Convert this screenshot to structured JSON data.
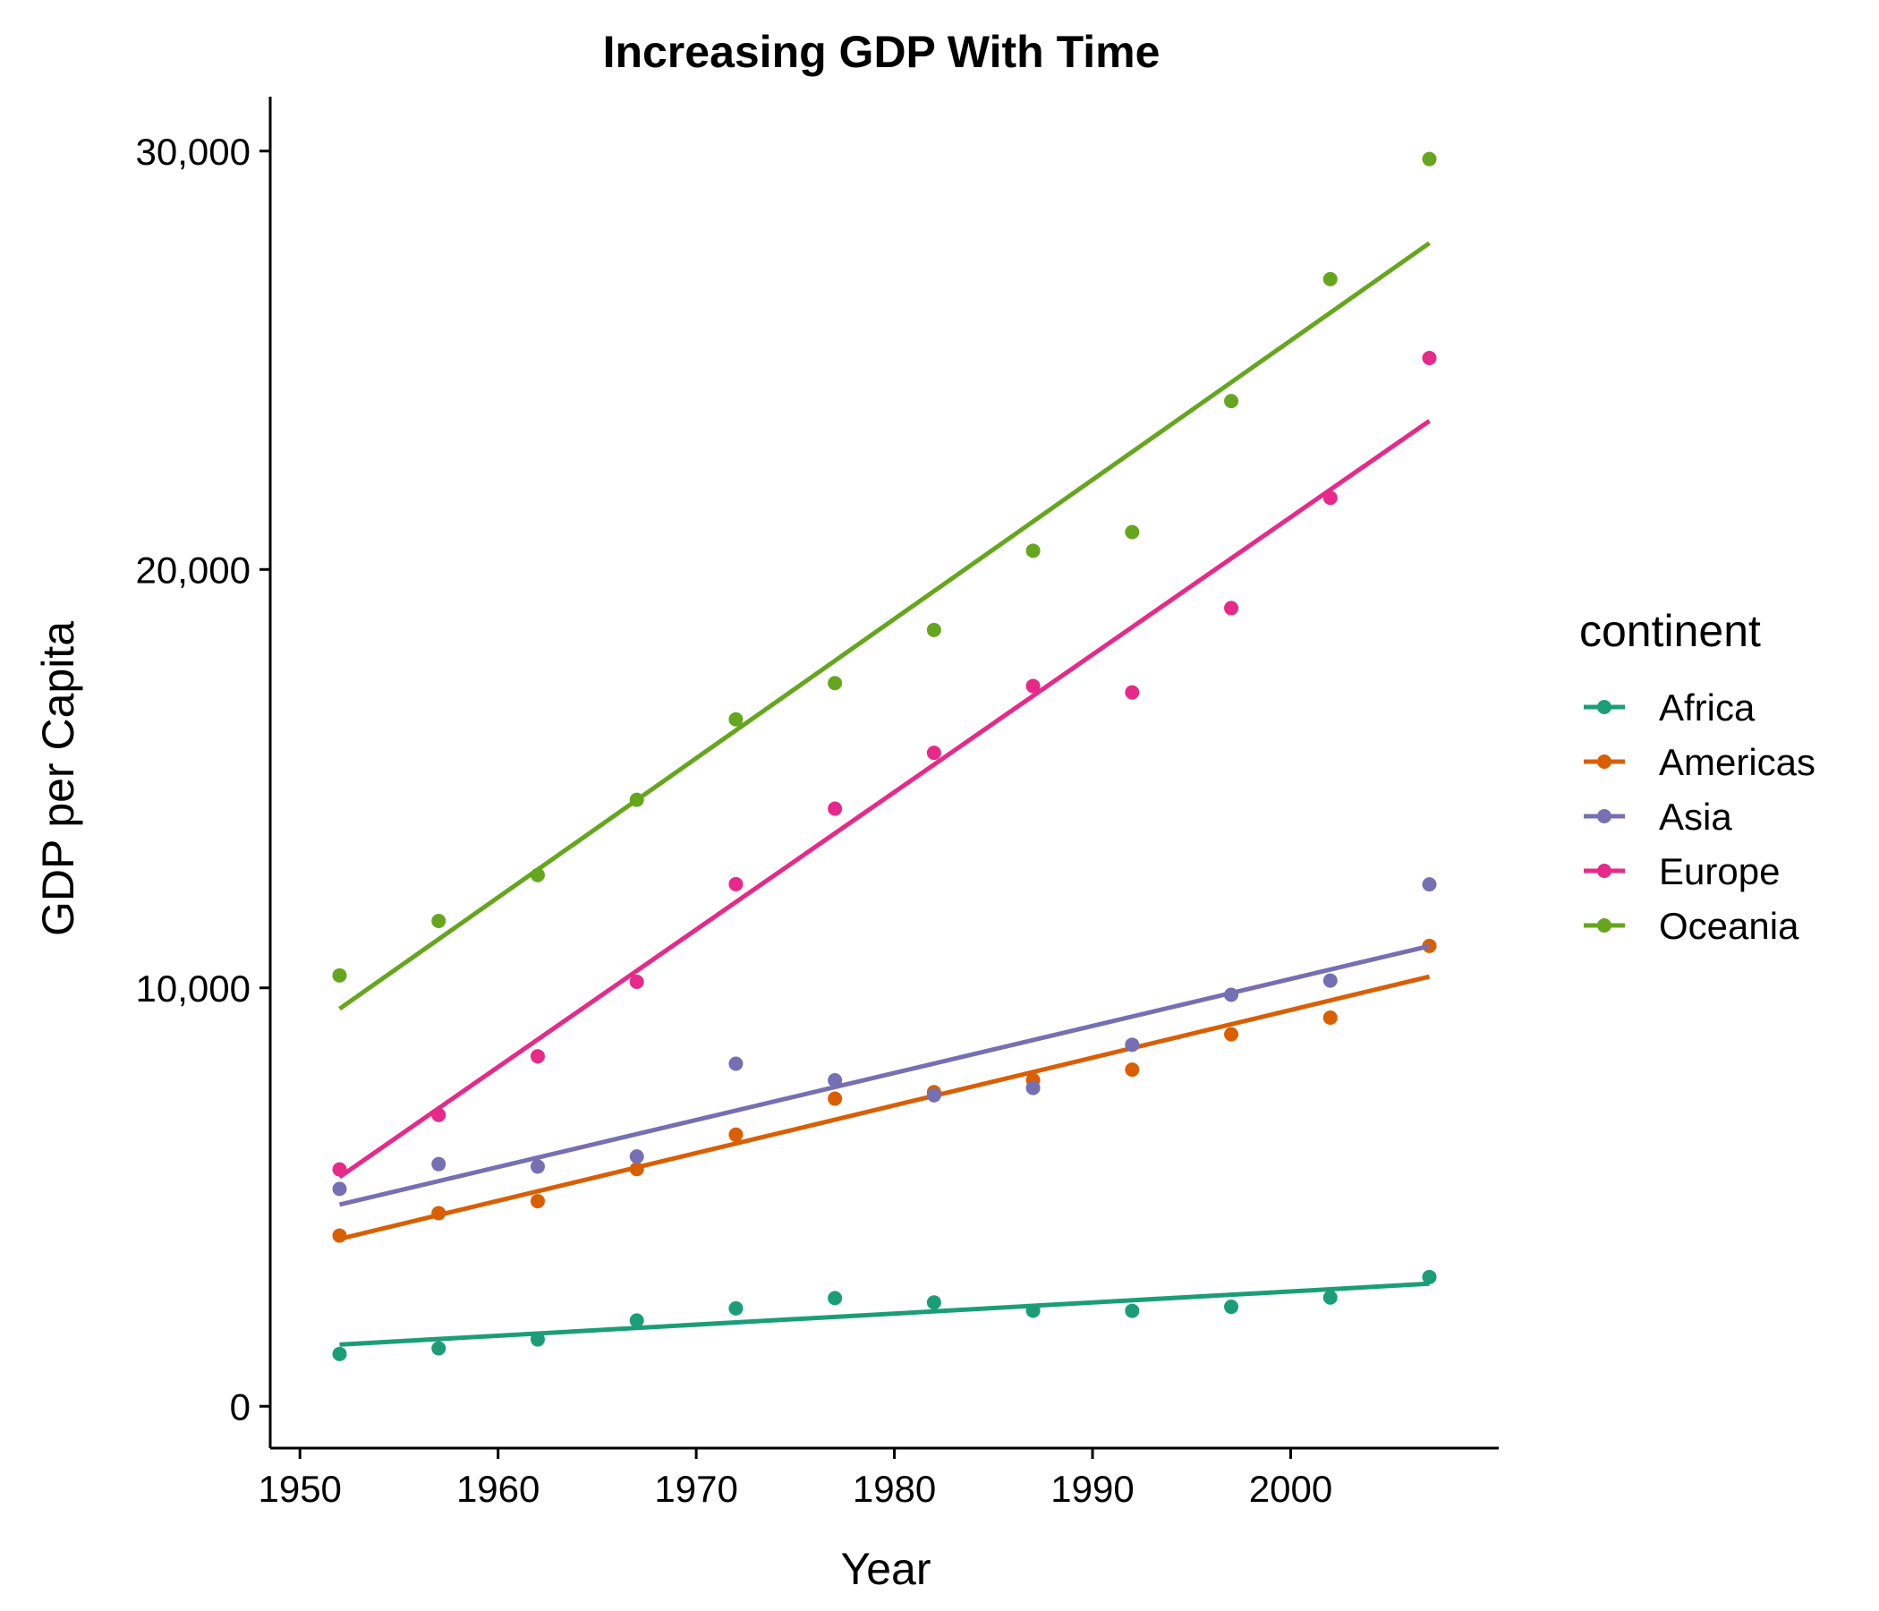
{
  "chart_data": {
    "type": "scatter",
    "title": "Increasing GDP With Time",
    "xlabel": "Year",
    "ylabel": "GDP per Capita",
    "xlim": [
      1948.5,
      2010.5
    ],
    "ylim": [
      -1000,
      31300
    ],
    "x_ticks": [
      1950,
      1960,
      1970,
      1980,
      1990,
      2000
    ],
    "y_ticks": [
      0,
      10000,
      20000,
      30000
    ],
    "y_tick_labels": [
      "0",
      "10,000",
      "20,000",
      "30,000"
    ],
    "grid": false,
    "legend": {
      "title": "continent",
      "position": "right"
    },
    "x": [
      1952,
      1957,
      1962,
      1967,
      1972,
      1977,
      1982,
      1987,
      1992,
      1997,
      2002,
      2007
    ],
    "series": [
      {
        "name": "Africa",
        "color": "#1b9e77",
        "values": [
          1250,
          1385,
          1598,
          2050,
          2340,
          2585,
          2482,
          2283,
          2282,
          2379,
          2599,
          3089
        ],
        "trend": [
          1475,
          2930
        ]
      },
      {
        "name": "Americas",
        "color": "#d95f02",
        "values": [
          4079,
          4616,
          4902,
          5668,
          6491,
          7352,
          7507,
          7793,
          8045,
          8890,
          9288,
          11003
        ],
        "trend": [
          4000,
          10270
        ]
      },
      {
        "name": "Asia",
        "color": "#7570b3",
        "values": [
          5195,
          5788,
          5729,
          5971,
          8187,
          7791,
          7434,
          7608,
          8640,
          9834,
          10174,
          12473
        ],
        "trend": [
          4820,
          11000
        ]
      },
      {
        "name": "Europe",
        "color": "#e7298a",
        "values": [
          5661,
          6963,
          8365,
          10144,
          12480,
          14284,
          15618,
          17214,
          17062,
          19077,
          21712,
          25054
        ],
        "trend": [
          5480,
          23550
        ]
      },
      {
        "name": "Oceania",
        "color": "#66a61e",
        "values": [
          10298,
          11599,
          12696,
          14495,
          16417,
          17284,
          18555,
          20448,
          20894,
          24024,
          26939,
          29810
        ],
        "trend": [
          9500,
          27800
        ]
      }
    ]
  }
}
